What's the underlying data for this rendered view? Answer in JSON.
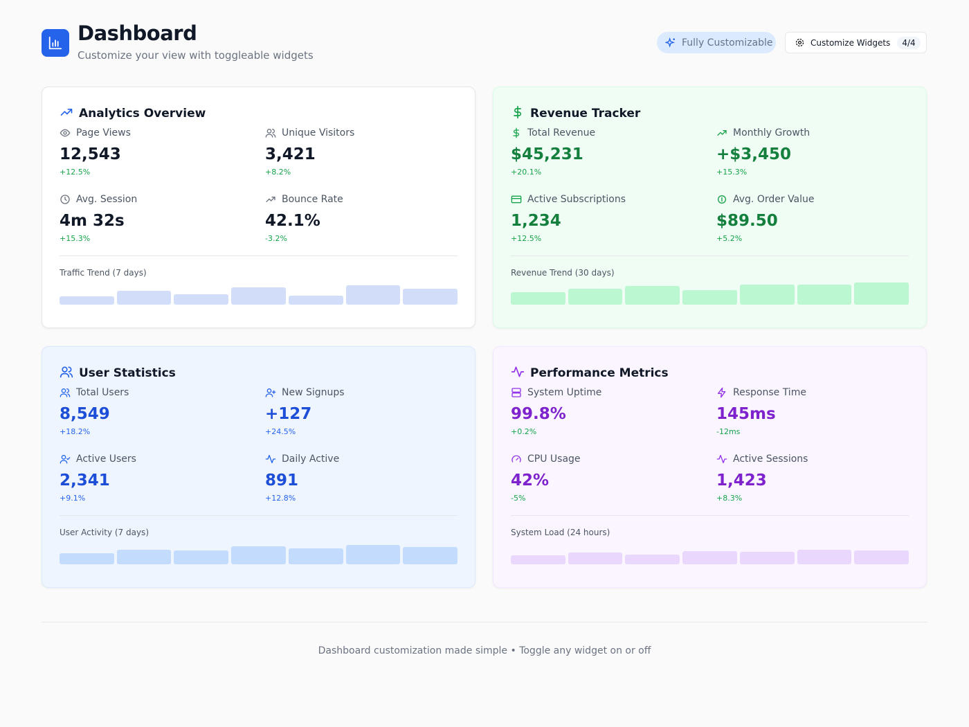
{
  "header": {
    "title": "Dashboard",
    "subtitle": "Customize your view with toggleable widgets",
    "badge": "Fully Customizable",
    "button": {
      "label": "Customize Widgets",
      "count": "4/4"
    }
  },
  "widgets": [
    {
      "title": "Analytics Overview",
      "metrics": [
        {
          "label": "Page Views",
          "value": "12,543",
          "change": "+12.5%"
        },
        {
          "label": "Unique Visitors",
          "value": "3,421",
          "change": "+8.2%"
        },
        {
          "label": "Avg. Session",
          "value": "4m 32s",
          "change": "+15.3%"
        },
        {
          "label": "Bounce Rate",
          "value": "42.1%",
          "change": "-3.2%"
        }
      ],
      "trend_label": "Traffic Trend (7 days)",
      "trend": [
        12,
        20,
        15,
        25,
        13,
        28,
        23
      ]
    },
    {
      "title": "Revenue Tracker",
      "metrics": [
        {
          "label": "Total Revenue",
          "value": "$45,231",
          "change": "+20.1%"
        },
        {
          "label": "Monthly Growth",
          "value": "+$3,450",
          "change": "+15.3%"
        },
        {
          "label": "Active Subscriptions",
          "value": "1,234",
          "change": "+12.5%"
        },
        {
          "label": "Avg. Order Value",
          "value": "$89.50",
          "change": "+5.2%"
        }
      ],
      "trend_label": "Revenue Trend (30 days)",
      "trend": [
        18,
        23,
        27,
        21,
        29,
        29,
        32
      ]
    },
    {
      "title": "User Statistics",
      "metrics": [
        {
          "label": "Total Users",
          "value": "8,549",
          "change": "+18.2%"
        },
        {
          "label": "New Signups",
          "value": "+127",
          "change": "+24.5%"
        },
        {
          "label": "Active Users",
          "value": "2,341",
          "change": "+9.1%"
        },
        {
          "label": "Daily Active",
          "value": "891",
          "change": "+12.8%"
        }
      ],
      "trend_label": "User Activity (7 days)",
      "trend": [
        16,
        21,
        20,
        26,
        23,
        28,
        25
      ]
    },
    {
      "title": "Performance Metrics",
      "metrics": [
        {
          "label": "System Uptime",
          "value": "99.8%",
          "change": "+0.2%"
        },
        {
          "label": "Response Time",
          "value": "145ms",
          "change": "-12ms"
        },
        {
          "label": "CPU Usage",
          "value": "42%",
          "change": "-5%"
        },
        {
          "label": "Active Sessions",
          "value": "1,423",
          "change": "+8.3%"
        }
      ],
      "trend_label": "System Load (24 hours)",
      "trend": [
        13,
        17,
        14,
        19,
        18,
        21,
        20
      ]
    }
  ],
  "footer": "Dashboard customization made simple • Toggle any widget on or off"
}
